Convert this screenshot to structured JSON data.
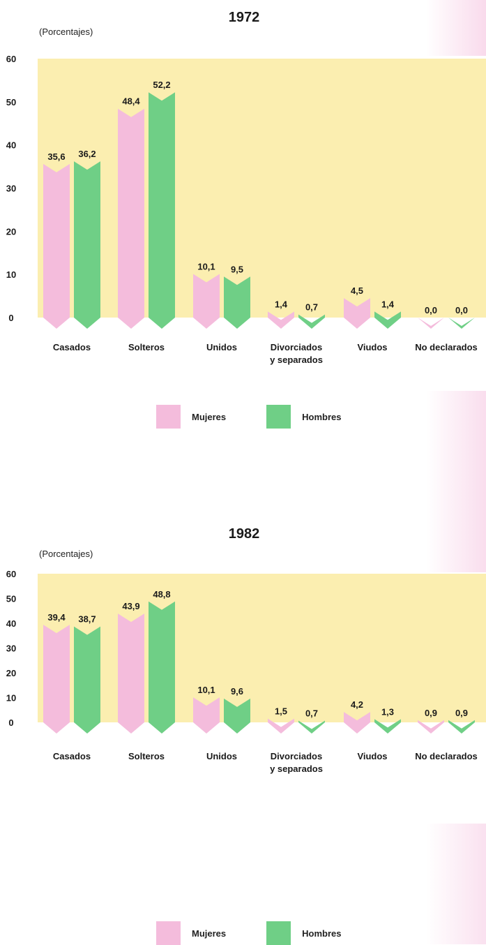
{
  "colors": {
    "mujeres": "#f4bcdc",
    "hombres": "#6fcf86",
    "plot_bg": "#fbeeb0",
    "text": "#1a1a1a"
  },
  "chart_data": [
    {
      "type": "bar",
      "title": "1972",
      "ylabel": "(Porcentajes)",
      "ylim": [
        0,
        60
      ],
      "yticks": [
        "0",
        "10",
        "20",
        "30",
        "40",
        "50",
        "60"
      ],
      "categories": [
        [
          "Casados"
        ],
        [
          "Solteros"
        ],
        [
          "Unidos"
        ],
        [
          "Divorciados",
          "y separados"
        ],
        [
          "Viudos"
        ],
        [
          "No declarados"
        ]
      ],
      "series": [
        {
          "name": "Mujeres",
          "values": [
            35.6,
            48.4,
            10.1,
            1.4,
            4.5,
            0.0
          ],
          "labels": [
            "35,6",
            "48,4",
            "10,1",
            "1,4",
            "4,5",
            "0,0"
          ]
        },
        {
          "name": "Hombres",
          "values": [
            36.2,
            52.2,
            9.5,
            0.7,
            1.4,
            0.0
          ],
          "labels": [
            "36,2",
            "52,2",
            "9,5",
            "0,7",
            "1,4",
            "0,0"
          ]
        }
      ],
      "legend": "bottom-center",
      "grid": false
    },
    {
      "type": "bar",
      "title": "1982",
      "ylabel": "(Porcentajes)",
      "ylim": [
        0,
        60
      ],
      "yticks": [
        "0",
        "10",
        "20",
        "30",
        "40",
        "50",
        "60"
      ],
      "categories": [
        [
          "Casados"
        ],
        [
          "Solteros"
        ],
        [
          "Unidos"
        ],
        [
          "Divorciados",
          "y separados"
        ],
        [
          "Viudos"
        ],
        [
          "No declarados"
        ]
      ],
      "series": [
        {
          "name": "Mujeres",
          "values": [
            39.4,
            43.9,
            10.1,
            1.5,
            4.2,
            0.9
          ],
          "labels": [
            "39,4",
            "43,9",
            "10,1",
            "1,5",
            "4,2",
            "0,9"
          ]
        },
        {
          "name": "Hombres",
          "values": [
            38.7,
            48.8,
            9.6,
            0.7,
            1.3,
            0.9
          ],
          "labels": [
            "38,7",
            "48,8",
            "9,6",
            "0,7",
            "1,3",
            "0,9"
          ]
        }
      ],
      "legend": "bottom-center",
      "grid": false
    }
  ]
}
